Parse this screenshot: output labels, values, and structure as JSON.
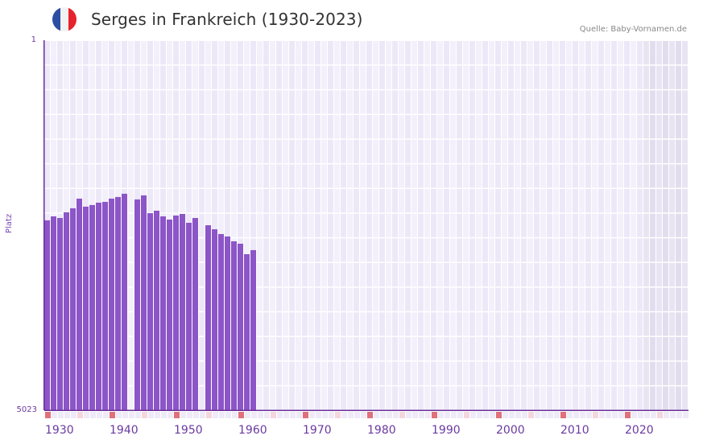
{
  "header": {
    "flag": {
      "country": "France",
      "colors": [
        "#2c4fa3",
        "#f2f2f2",
        "#e6232c"
      ]
    },
    "title": "Serges in Frankreich (1930-2023)",
    "source": "Quelle: Baby-Vornamen.de"
  },
  "colors": {
    "bar": "#8c55c8",
    "axis": "#6a2e98",
    "grid_a": "#ede8f8",
    "grid_b": "#f3f0fb",
    "future_a": "#e2ddee",
    "future_b": "#e8e4f2",
    "decade_mark": "#e0707a",
    "half_decade_mark": "#f5d6dc",
    "year_mark": "#efeaf8"
  },
  "chart_data": {
    "type": "bar",
    "title": "Serges in Frankreich (1930-2023)",
    "xlabel": "",
    "ylabel": "Platz",
    "y_inverted": true,
    "ylim": [
      1,
      5023
    ],
    "ytick_labels": [
      "1",
      "5023"
    ],
    "xlim": [
      1930,
      2029
    ],
    "xtick_labels": [
      "1930",
      "1940",
      "1950",
      "1960",
      "1970",
      "1980",
      "1990",
      "2000",
      "2010",
      "2020"
    ],
    "grid": true,
    "shaded_region": [
      2023,
      2029
    ],
    "categories": [
      1930,
      1931,
      1932,
      1933,
      1934,
      1935,
      1936,
      1937,
      1938,
      1939,
      1940,
      1941,
      1942,
      1943,
      1944,
      1945,
      1946,
      1947,
      1948,
      1949,
      1950,
      1951,
      1952,
      1953,
      1954,
      1955,
      1956,
      1957,
      1958,
      1959,
      1960,
      1961,
      1962
    ],
    "values": [
      2446,
      2392,
      2414,
      2337,
      2282,
      2151,
      2260,
      2238,
      2206,
      2195,
      2151,
      2129,
      2085,
      null,
      2162,
      2107,
      2348,
      2315,
      2392,
      2435,
      2381,
      2359,
      2479,
      2414,
      null,
      2512,
      2567,
      2632,
      2665,
      2730,
      2763,
      2905,
      2850
    ]
  }
}
